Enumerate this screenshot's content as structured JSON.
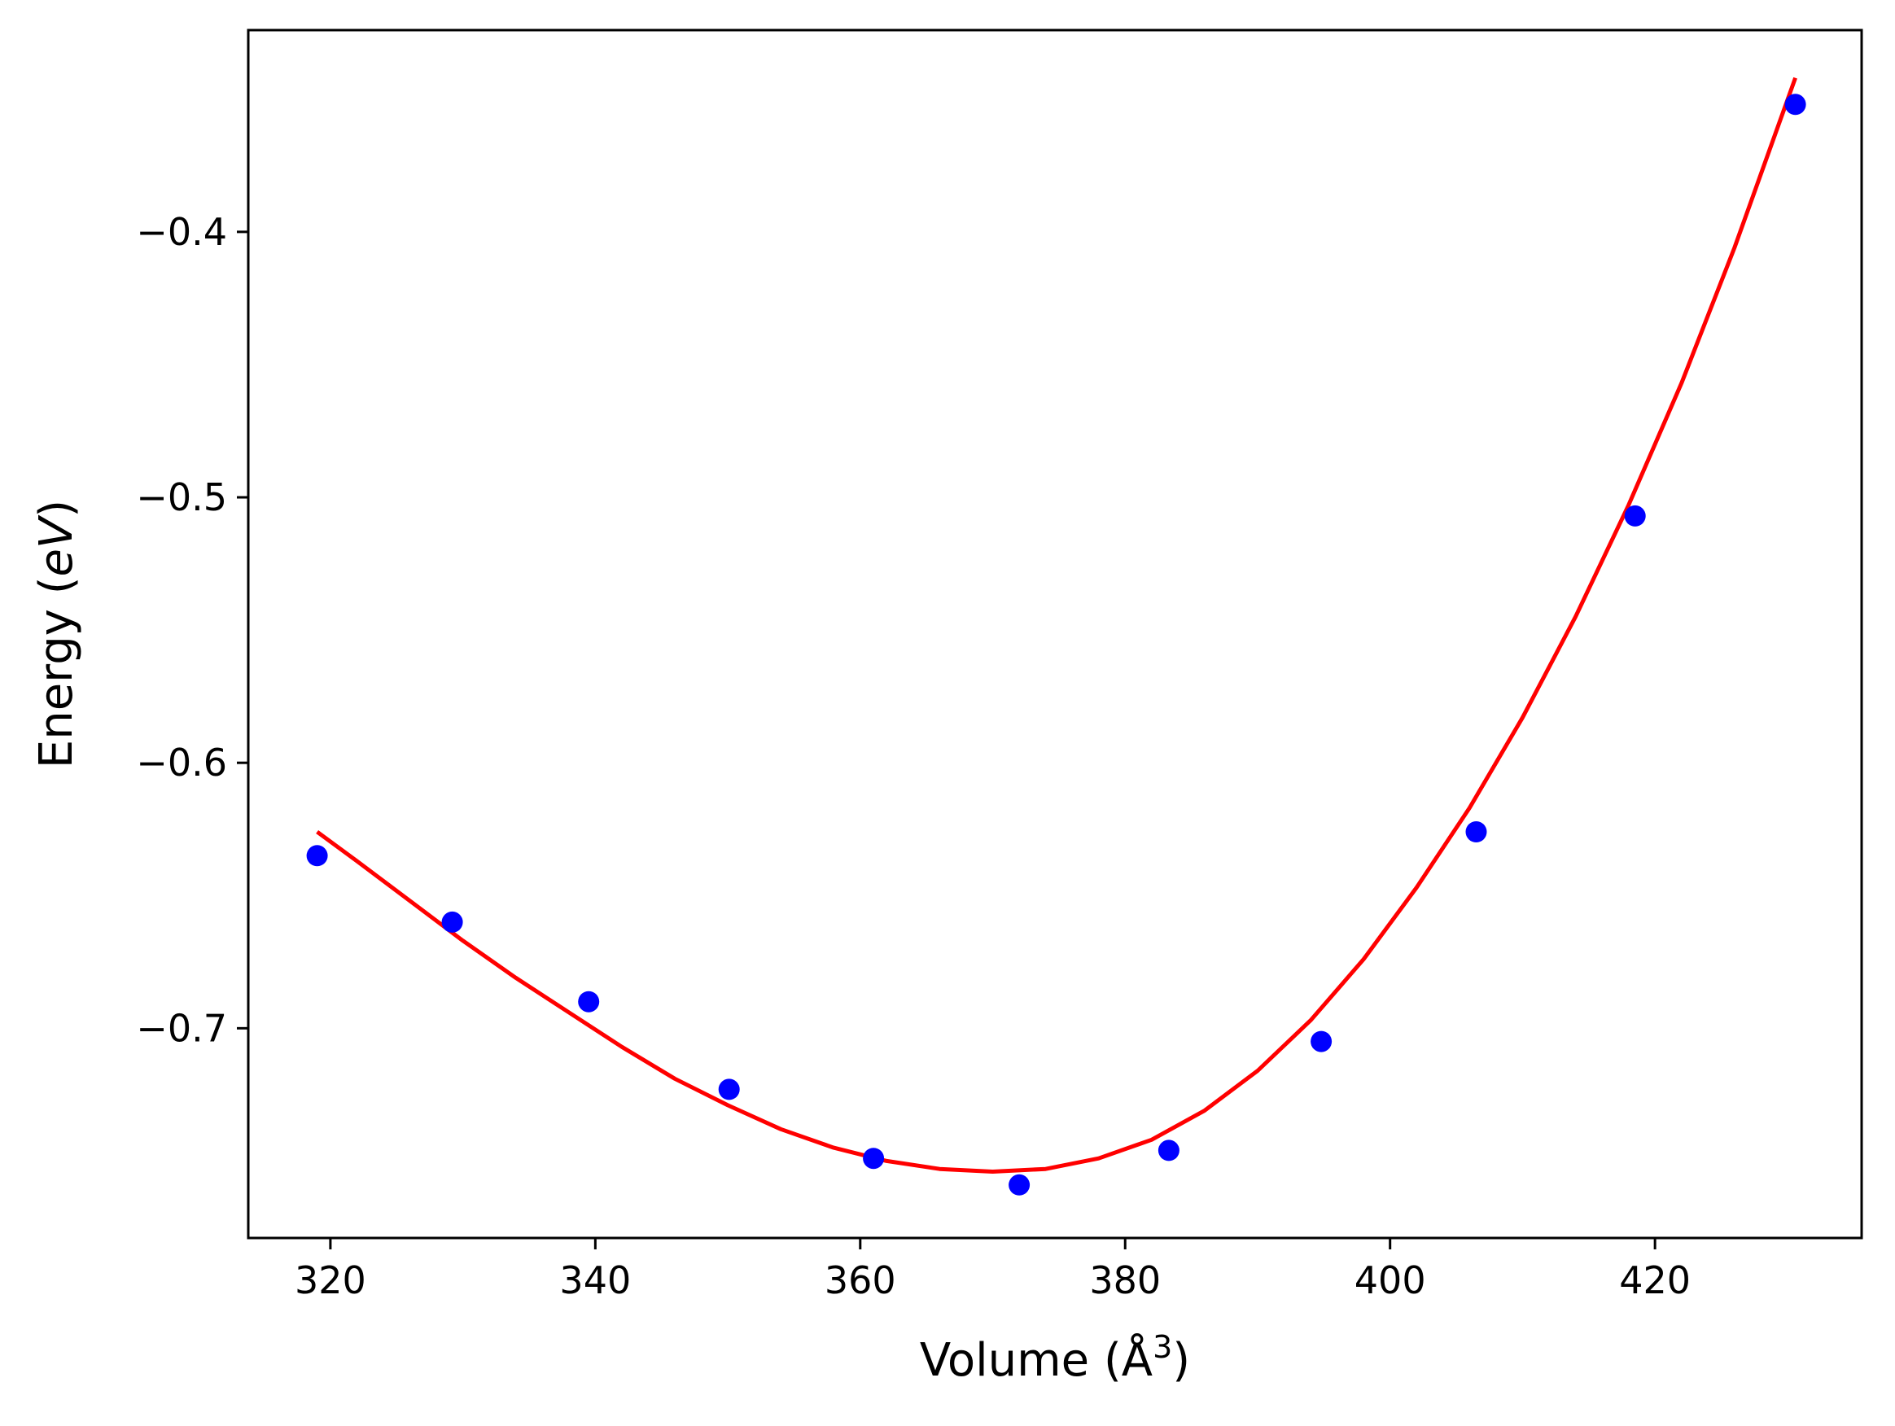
{
  "chart_data": {
    "type": "scatter",
    "title": "",
    "xlabel": "Volume (Å",
    "xlabel_sup": "3",
    "xlabel_close": ")",
    "ylabel_prefix": "Energy (",
    "ylabel_unit": "eV",
    "ylabel_suffix": ")",
    "xlim": [
      313.8,
      435.6
    ],
    "ylim": [
      -0.779,
      -0.324
    ],
    "xticks": [
      320,
      340,
      360,
      380,
      400,
      420
    ],
    "xtick_labels": [
      "320",
      "340",
      "360",
      "380",
      "400",
      "420"
    ],
    "yticks": [
      -0.4,
      -0.5,
      -0.6,
      -0.7
    ],
    "ytick_labels": [
      "−0.4",
      "−0.5",
      "−0.6",
      "−0.7"
    ],
    "grid": false,
    "legend": null,
    "series": [
      {
        "kind": "points",
        "color": "#0000ff",
        "x": [
          319.0,
          329.2,
          339.5,
          350.1,
          361.0,
          372.0,
          383.3,
          394.8,
          406.5,
          418.5,
          430.6
        ],
        "y": [
          -0.635,
          -0.66,
          -0.69,
          -0.723,
          -0.749,
          -0.759,
          -0.746,
          -0.705,
          -0.626,
          -0.507,
          -0.352
        ]
      },
      {
        "kind": "fit-line",
        "color": "#ff0000",
        "x": [
          319.0,
          322.0,
          326.0,
          330.0,
          334.0,
          338.0,
          342.0,
          346.0,
          350.0,
          354.0,
          358.0,
          362.0,
          366.0,
          370.0,
          374.0,
          378.0,
          382.0,
          386.0,
          390.0,
          394.0,
          398.0,
          402.0,
          406.0,
          410.0,
          414.0,
          418.0,
          422.0,
          426.0,
          430.6
        ],
        "y": [
          -0.626,
          -0.637,
          -0.652,
          -0.667,
          -0.681,
          -0.694,
          -0.707,
          -0.719,
          -0.729,
          -0.738,
          -0.745,
          -0.75,
          -0.753,
          -0.754,
          -0.753,
          -0.749,
          -0.742,
          -0.731,
          -0.716,
          -0.697,
          -0.674,
          -0.647,
          -0.617,
          -0.583,
          -0.545,
          -0.503,
          -0.457,
          -0.406,
          -0.342
        ]
      }
    ]
  }
}
